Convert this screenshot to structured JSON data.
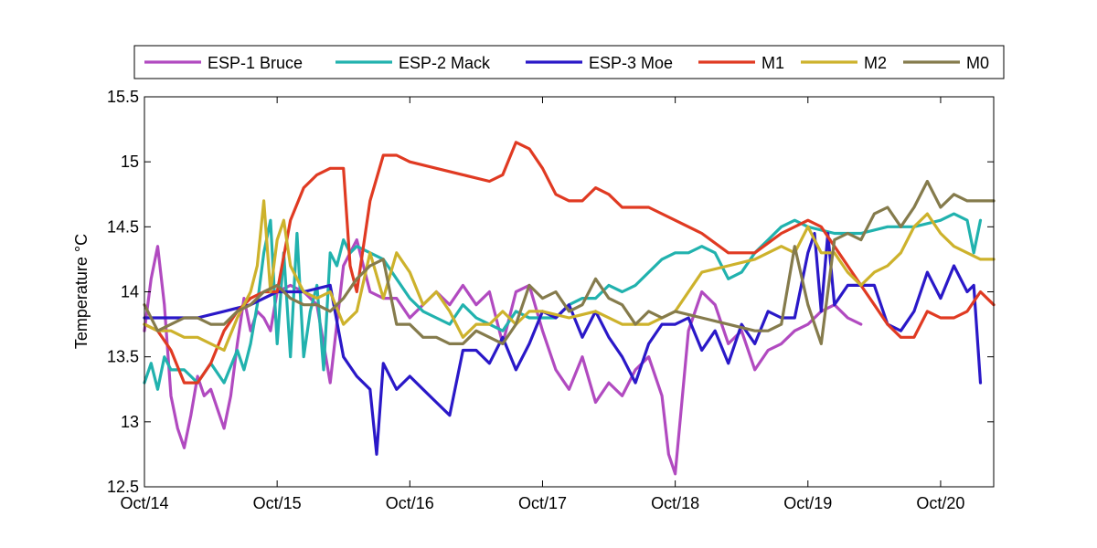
{
  "chart_data": {
    "type": "line",
    "title": "",
    "xlabel": "",
    "ylabel": "Temperature °C",
    "xlim": [
      0,
      6.4
    ],
    "ylim": [
      12.5,
      15.5
    ],
    "yticks": [
      "12.5",
      "13",
      "13.5",
      "14",
      "14.5",
      "15",
      "15.5"
    ],
    "xticks": [
      {
        "x": 0,
        "label": "Oct/14"
      },
      {
        "x": 1,
        "label": "Oct/15"
      },
      {
        "x": 2,
        "label": "Oct/16"
      },
      {
        "x": 3,
        "label": "Oct/17"
      },
      {
        "x": 4,
        "label": "Oct/18"
      },
      {
        "x": 5,
        "label": "Oct/19"
      },
      {
        "x": 6,
        "label": "Oct/20"
      }
    ],
    "grid": false,
    "legend_position": "top",
    "series": [
      {
        "name": "ESP-1 Bruce",
        "color": "#b14ac0",
        "x": [
          0,
          0.05,
          0.1,
          0.15,
          0.2,
          0.25,
          0.3,
          0.35,
          0.4,
          0.45,
          0.5,
          0.55,
          0.6,
          0.65,
          0.7,
          0.75,
          0.8,
          0.85,
          0.9,
          0.95,
          1.0,
          1.1,
          1.2,
          1.3,
          1.4,
          1.5,
          1.6,
          1.7,
          1.8,
          1.9,
          2.0,
          2.1,
          2.2,
          2.3,
          2.4,
          2.5,
          2.6,
          2.7,
          2.8,
          2.9,
          3.0,
          3.1,
          3.2,
          3.3,
          3.4,
          3.5,
          3.6,
          3.7,
          3.8,
          3.9,
          3.95,
          4.0,
          4.1,
          4.2,
          4.3,
          4.4,
          4.5,
          4.6,
          4.7,
          4.8,
          4.9,
          5.0,
          5.1,
          5.2,
          5.3,
          5.4
        ],
        "y": [
          13.7,
          14.1,
          14.35,
          13.9,
          13.2,
          12.95,
          12.8,
          13.05,
          13.35,
          13.2,
          13.25,
          13.1,
          12.95,
          13.2,
          13.6,
          13.95,
          13.7,
          13.85,
          13.8,
          13.7,
          14.0,
          14.05,
          14.0,
          13.9,
          13.3,
          14.2,
          14.4,
          14.0,
          13.95,
          13.95,
          13.8,
          13.9,
          14.0,
          13.9,
          14.05,
          13.9,
          14.0,
          13.6,
          14.0,
          14.05,
          13.7,
          13.4,
          13.25,
          13.5,
          13.15,
          13.3,
          13.2,
          13.4,
          13.5,
          13.2,
          12.75,
          12.6,
          13.7,
          14.0,
          13.9,
          13.6,
          13.7,
          13.4,
          13.55,
          13.6,
          13.7,
          13.75,
          13.85,
          13.9,
          13.8,
          13.75
        ]
      },
      {
        "name": "ESP-2 Mack",
        "color": "#21b2ae",
        "x": [
          0,
          0.05,
          0.1,
          0.15,
          0.2,
          0.3,
          0.4,
          0.5,
          0.6,
          0.7,
          0.75,
          0.8,
          0.85,
          0.9,
          0.95,
          1.0,
          1.05,
          1.1,
          1.15,
          1.2,
          1.25,
          1.3,
          1.35,
          1.4,
          1.45,
          1.5,
          1.55,
          1.6,
          1.7,
          1.8,
          1.9,
          2.0,
          2.1,
          2.2,
          2.3,
          2.4,
          2.5,
          2.6,
          2.7,
          2.8,
          2.9,
          3.0,
          3.1,
          3.2,
          3.3,
          3.4,
          3.5,
          3.6,
          3.7,
          3.8,
          3.9,
          4.0,
          4.1,
          4.2,
          4.3,
          4.4,
          4.5,
          4.6,
          4.7,
          4.8,
          4.9,
          5.0,
          5.2,
          5.4,
          5.6,
          5.8,
          6.0,
          6.1,
          6.2,
          6.25,
          6.3
        ],
        "y": [
          13.3,
          13.45,
          13.25,
          13.5,
          13.4,
          13.4,
          13.3,
          13.45,
          13.3,
          13.55,
          13.4,
          13.6,
          13.9,
          14.3,
          14.55,
          13.6,
          14.3,
          13.5,
          14.45,
          13.5,
          13.85,
          14.05,
          13.4,
          14.3,
          14.2,
          14.4,
          14.3,
          14.35,
          14.3,
          14.25,
          14.1,
          13.95,
          13.85,
          13.8,
          13.75,
          13.9,
          13.8,
          13.75,
          13.7,
          13.85,
          13.8,
          13.8,
          13.8,
          13.9,
          13.95,
          13.95,
          14.05,
          14.0,
          14.05,
          14.15,
          14.25,
          14.3,
          14.3,
          14.35,
          14.3,
          14.1,
          14.15,
          14.3,
          14.4,
          14.5,
          14.55,
          14.5,
          14.45,
          14.45,
          14.5,
          14.5,
          14.55,
          14.6,
          14.55,
          14.3,
          14.55
        ]
      },
      {
        "name": "ESP-3 Moe",
        "color": "#2a18c8",
        "x": [
          0,
          0.2,
          0.4,
          0.6,
          0.8,
          1.0,
          1.2,
          1.4,
          1.5,
          1.6,
          1.7,
          1.75,
          1.8,
          1.9,
          2.0,
          2.1,
          2.2,
          2.3,
          2.4,
          2.5,
          2.6,
          2.7,
          2.8,
          2.9,
          3.0,
          3.1,
          3.2,
          3.3,
          3.4,
          3.5,
          3.6,
          3.7,
          3.8,
          3.9,
          4.0,
          4.1,
          4.2,
          4.3,
          4.4,
          4.5,
          4.6,
          4.7,
          4.8,
          4.9,
          5.0,
          5.05,
          5.1,
          5.15,
          5.2,
          5.3,
          5.4,
          5.5,
          5.6,
          5.7,
          5.8,
          5.9,
          6.0,
          6.1,
          6.2,
          6.25,
          6.3
        ],
        "y": [
          13.8,
          13.8,
          13.8,
          13.85,
          13.9,
          14.0,
          14.0,
          14.05,
          13.5,
          13.35,
          13.25,
          12.75,
          13.45,
          13.25,
          13.35,
          13.25,
          13.15,
          13.05,
          13.55,
          13.55,
          13.45,
          13.65,
          13.4,
          13.6,
          13.85,
          13.8,
          13.9,
          13.65,
          13.85,
          13.65,
          13.5,
          13.3,
          13.6,
          13.75,
          13.75,
          13.8,
          13.55,
          13.7,
          13.45,
          13.75,
          13.6,
          13.85,
          13.8,
          13.8,
          14.3,
          14.45,
          13.85,
          14.45,
          13.9,
          14.05,
          14.05,
          14.05,
          13.75,
          13.7,
          13.85,
          14.15,
          13.95,
          14.2,
          14.0,
          14.05,
          13.3
        ]
      },
      {
        "name": "M1",
        "color": "#e03a22",
        "x": [
          0,
          0.1,
          0.2,
          0.3,
          0.4,
          0.5,
          0.6,
          0.7,
          0.8,
          0.9,
          1.0,
          1.1,
          1.2,
          1.3,
          1.4,
          1.5,
          1.55,
          1.6,
          1.7,
          1.8,
          1.9,
          2.0,
          2.2,
          2.4,
          2.6,
          2.7,
          2.8,
          2.9,
          3.0,
          3.1,
          3.2,
          3.3,
          3.4,
          3.5,
          3.6,
          3.8,
          4.0,
          4.2,
          4.4,
          4.6,
          4.8,
          5.0,
          5.1,
          5.2,
          5.3,
          5.4,
          5.5,
          5.6,
          5.7,
          5.8,
          5.9,
          6.0,
          6.1,
          6.2,
          6.3,
          6.4
        ],
        "y": [
          13.75,
          13.7,
          13.55,
          13.3,
          13.3,
          13.45,
          13.7,
          13.85,
          13.95,
          14.0,
          14.0,
          14.55,
          14.8,
          14.9,
          14.95,
          14.95,
          14.2,
          14.0,
          14.7,
          15.05,
          15.05,
          15.0,
          14.95,
          14.9,
          14.85,
          14.9,
          15.15,
          15.1,
          14.95,
          14.75,
          14.7,
          14.7,
          14.8,
          14.75,
          14.65,
          14.65,
          14.55,
          14.45,
          14.3,
          14.3,
          14.45,
          14.55,
          14.5,
          14.35,
          14.2,
          14.05,
          13.9,
          13.75,
          13.65,
          13.65,
          13.85,
          13.8,
          13.8,
          13.85,
          14.0,
          13.9
        ]
      },
      {
        "name": "M2",
        "color": "#cdb22c",
        "x": [
          0,
          0.1,
          0.2,
          0.3,
          0.4,
          0.5,
          0.6,
          0.7,
          0.8,
          0.85,
          0.9,
          0.95,
          1.0,
          1.05,
          1.1,
          1.2,
          1.3,
          1.4,
          1.5,
          1.6,
          1.7,
          1.8,
          1.9,
          2.0,
          2.1,
          2.2,
          2.3,
          2.4,
          2.5,
          2.6,
          2.7,
          2.8,
          2.9,
          3.0,
          3.2,
          3.4,
          3.6,
          3.8,
          4.0,
          4.2,
          4.4,
          4.6,
          4.8,
          4.9,
          5.0,
          5.1,
          5.2,
          5.3,
          5.4,
          5.5,
          5.6,
          5.7,
          5.8,
          5.9,
          6.0,
          6.1,
          6.2,
          6.3,
          6.4
        ],
        "y": [
          13.75,
          13.7,
          13.7,
          13.65,
          13.65,
          13.6,
          13.55,
          13.8,
          14.0,
          14.2,
          14.7,
          14.0,
          14.4,
          14.55,
          14.2,
          14.0,
          13.95,
          14.0,
          13.75,
          13.85,
          14.3,
          13.95,
          14.3,
          14.15,
          13.9,
          14.0,
          13.85,
          13.65,
          13.75,
          13.75,
          13.85,
          13.75,
          13.85,
          13.85,
          13.8,
          13.85,
          13.75,
          13.75,
          13.85,
          14.15,
          14.2,
          14.25,
          14.35,
          14.3,
          14.5,
          14.3,
          14.3,
          14.15,
          14.05,
          14.15,
          14.2,
          14.3,
          14.5,
          14.6,
          14.45,
          14.35,
          14.3,
          14.25,
          14.25
        ]
      },
      {
        "name": "M0",
        "color": "#857b4c",
        "x": [
          0,
          0.1,
          0.2,
          0.3,
          0.4,
          0.5,
          0.6,
          0.7,
          0.8,
          0.9,
          1.0,
          1.1,
          1.2,
          1.3,
          1.4,
          1.5,
          1.6,
          1.7,
          1.8,
          1.9,
          2.0,
          2.1,
          2.2,
          2.3,
          2.4,
          2.5,
          2.6,
          2.7,
          2.8,
          2.9,
          3.0,
          3.1,
          3.2,
          3.3,
          3.4,
          3.5,
          3.6,
          3.7,
          3.8,
          3.9,
          4.0,
          4.2,
          4.4,
          4.6,
          4.7,
          4.8,
          4.9,
          5.0,
          5.1,
          5.2,
          5.3,
          5.4,
          5.5,
          5.6,
          5.7,
          5.8,
          5.9,
          6.0,
          6.1,
          6.2,
          6.3,
          6.4
        ],
        "y": [
          13.9,
          13.7,
          13.75,
          13.8,
          13.8,
          13.75,
          13.75,
          13.85,
          13.9,
          14.0,
          14.05,
          13.95,
          13.9,
          13.9,
          13.85,
          13.95,
          14.1,
          14.2,
          14.25,
          13.75,
          13.75,
          13.65,
          13.65,
          13.6,
          13.6,
          13.7,
          13.65,
          13.6,
          13.75,
          14.05,
          13.95,
          14.0,
          13.85,
          13.9,
          14.1,
          13.95,
          13.9,
          13.75,
          13.85,
          13.8,
          13.85,
          13.8,
          13.75,
          13.7,
          13.7,
          13.75,
          14.35,
          13.9,
          13.6,
          14.4,
          14.45,
          14.4,
          14.6,
          14.65,
          14.5,
          14.65,
          14.85,
          14.65,
          14.75,
          14.7,
          14.7,
          14.7
        ]
      }
    ]
  }
}
